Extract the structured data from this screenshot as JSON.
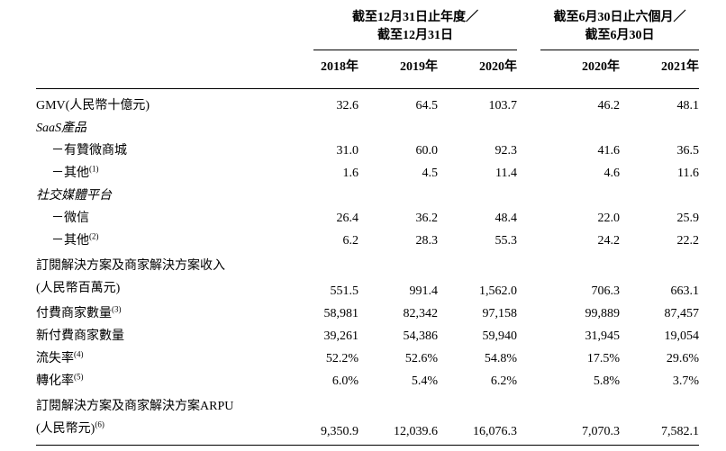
{
  "table": {
    "header": {
      "group1": {
        "line1": "截至12月31日止年度／",
        "line2": "截至12月31日",
        "years": [
          "2018年",
          "2019年",
          "2020年"
        ]
      },
      "group2": {
        "line1": "截至6月30日止六個月／",
        "line2": "截至6月30日",
        "years": [
          "2020年",
          "2021年"
        ]
      }
    },
    "rows": [
      {
        "label": "GMV(人民幣十億元)",
        "values": [
          "32.6",
          "64.5",
          "103.7",
          "46.2",
          "48.1"
        ]
      },
      {
        "label": "SaaS產品"
      },
      {
        "label": "－有贊微商城",
        "values": [
          "31.0",
          "60.0",
          "92.3",
          "41.6",
          "36.5"
        ]
      },
      {
        "label": "－其他",
        "sup": "(1)",
        "values": [
          "1.6",
          "4.5",
          "11.4",
          "4.6",
          "11.6"
        ]
      },
      {
        "label": "社交媒體平台"
      },
      {
        "label": "－微信",
        "values": [
          "26.4",
          "36.2",
          "48.4",
          "22.0",
          "25.9"
        ]
      },
      {
        "label": "－其他",
        "sup": "(2)",
        "values": [
          "6.2",
          "28.3",
          "55.3",
          "24.2",
          "22.2"
        ]
      },
      {
        "label": "訂閱解決方案及商家解決方案收入",
        "label2": "(人民幣百萬元)",
        "values": [
          "551.5",
          "991.4",
          "1,562.0",
          "706.3",
          "663.1"
        ]
      },
      {
        "label": "付費商家數量",
        "sup": "(3)",
        "values": [
          "58,981",
          "82,342",
          "97,158",
          "99,889",
          "87,457"
        ]
      },
      {
        "label": "新付費商家數量",
        "values": [
          "39,261",
          "54,386",
          "59,940",
          "31,945",
          "19,054"
        ]
      },
      {
        "label": "流失率",
        "sup": "(4)",
        "values": [
          "52.2%",
          "52.6%",
          "54.8%",
          "17.5%",
          "29.6%"
        ]
      },
      {
        "label": "轉化率",
        "sup": "(5)",
        "values": [
          "6.0%",
          "5.4%",
          "6.2%",
          "5.8%",
          "3.7%"
        ]
      },
      {
        "label": "訂閱解決方案及商家解決方案ARPU",
        "label2": "(人民幣元)",
        "sup": "(6)",
        "values": [
          "9,350.9",
          "12,039.6",
          "16,076.3",
          "7,070.3",
          "7,582.1"
        ]
      }
    ]
  }
}
